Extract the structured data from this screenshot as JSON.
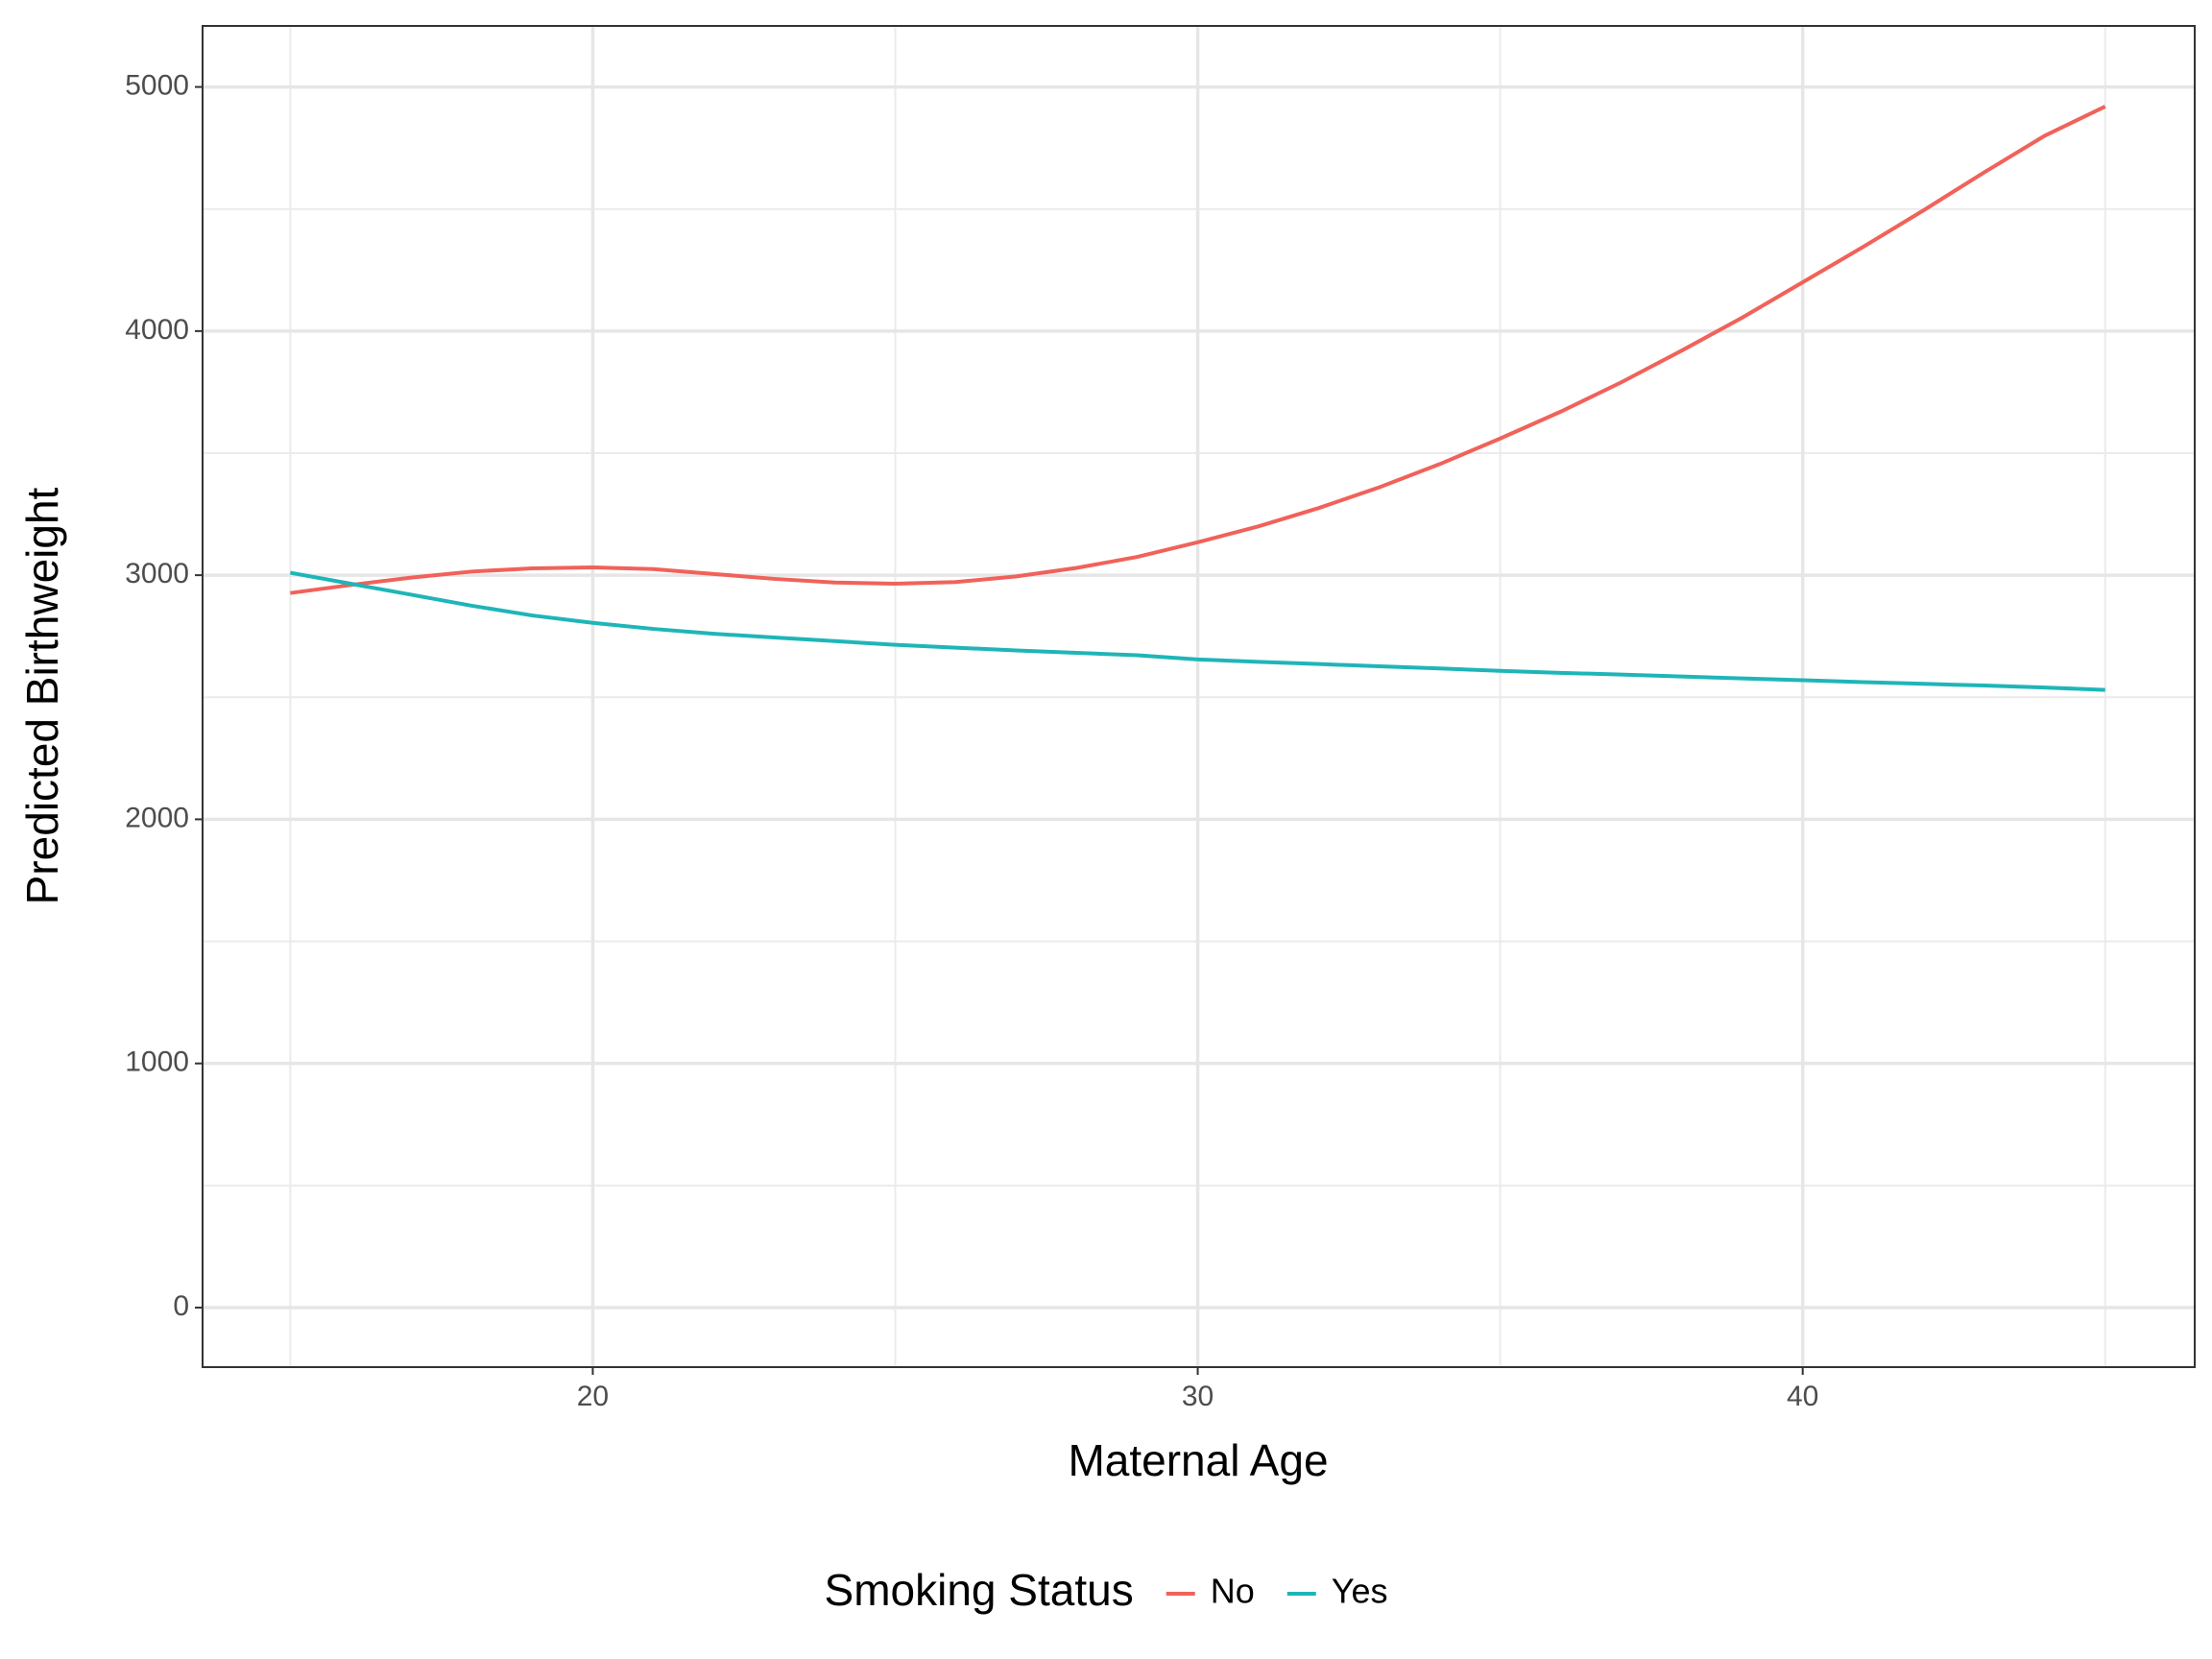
{
  "chart_data": {
    "type": "line",
    "x_label": "Maternal Age",
    "y_label": "Predicted Birthweight",
    "x": [
      15,
      16,
      17,
      18,
      19,
      20,
      21,
      22,
      23,
      24,
      25,
      26,
      27,
      28,
      29,
      30,
      31,
      32,
      33,
      34,
      35,
      36,
      37,
      38,
      39,
      40,
      41,
      42,
      43,
      44,
      45
    ],
    "series": [
      {
        "name": "No",
        "color": "#f0625a",
        "values": [
          2927,
          2960,
          2990,
          3015,
          3028,
          3032,
          3025,
          3005,
          2985,
          2970,
          2965,
          2972,
          2995,
          3030,
          3075,
          3135,
          3200,
          3275,
          3360,
          3455,
          3560,
          3670,
          3790,
          3920,
          4055,
          4200,
          4345,
          4495,
          4650,
          4800,
          4920
        ]
      },
      {
        "name": "Yes",
        "color": "#1fb5b8",
        "values": [
          3010,
          2965,
          2920,
          2875,
          2835,
          2805,
          2780,
          2760,
          2745,
          2730,
          2715,
          2703,
          2692,
          2682,
          2672,
          2655,
          2645,
          2636,
          2627,
          2618,
          2608,
          2600,
          2593,
          2585,
          2577,
          2570,
          2562,
          2555,
          2548,
          2540,
          2530
        ]
      }
    ],
    "legend_title": "Smoking Status",
    "legend_position": "bottom",
    "xlim": [
      13.55,
      46.48
    ],
    "xticks": [
      20,
      30,
      40
    ],
    "ylim": [
      -244,
      5250
    ],
    "yticks": [
      0,
      1000,
      2000,
      3000,
      4000,
      5000
    ],
    "grid": true,
    "minor_grid": true
  }
}
